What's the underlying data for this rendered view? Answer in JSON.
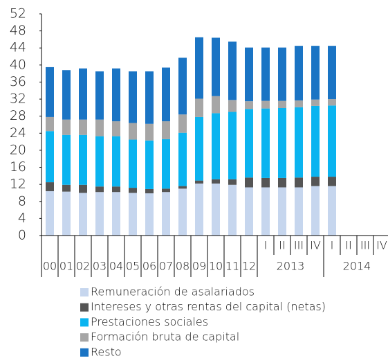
{
  "chart_data": {
    "type": "bar",
    "stacked": true,
    "categories": [
      "00",
      "01",
      "02",
      "03",
      "04",
      "05",
      "06",
      "07",
      "08",
      "09",
      "10",
      "11",
      "12",
      "I",
      "II",
      "III",
      "IV",
      "I",
      "II",
      "III",
      "IV"
    ],
    "x_groups": [
      {
        "label": "2013",
        "from": 13,
        "to": 16
      },
      {
        "label": "2014",
        "from": 17,
        "to": 20
      }
    ],
    "ylim": [
      0,
      52
    ],
    "yticks": [
      0,
      4,
      8,
      12,
      16,
      20,
      24,
      28,
      32,
      36,
      40,
      44,
      48,
      52
    ],
    "series": [
      {
        "name": "Remuneración de asalariados",
        "color": "#c6d6ee",
        "values": [
          10.4,
          10.3,
          10.0,
          10.2,
          10.2,
          10.0,
          9.9,
          10.2,
          11.0,
          12.2,
          12.2,
          11.9,
          11.3,
          11.3,
          11.3,
          11.3,
          11.6,
          11.6,
          null,
          null,
          null
        ]
      },
      {
        "name": "Intereses y otras rentas del capital (netas)",
        "color": "#555555",
        "values": [
          2.1,
          1.6,
          1.9,
          1.3,
          1.3,
          1.2,
          1.0,
          0.8,
          0.6,
          0.7,
          1.0,
          1.3,
          2.3,
          2.2,
          2.2,
          2.3,
          2.2,
          2.2,
          null,
          null,
          null
        ]
      },
      {
        "name": "Prestaciones sociales",
        "color": "#0ab4f0",
        "values": [
          12.0,
          11.7,
          11.7,
          11.8,
          11.8,
          11.3,
          11.4,
          11.6,
          12.5,
          14.9,
          15.5,
          15.8,
          16.1,
          16.3,
          16.4,
          16.5,
          16.6,
          16.7,
          null,
          null,
          null
        ]
      },
      {
        "name": "Formación bruta de capital",
        "color": "#a6a6a6",
        "values": [
          3.3,
          3.6,
          3.6,
          3.9,
          3.5,
          3.9,
          3.9,
          4.2,
          4.3,
          4.3,
          4.0,
          2.8,
          1.8,
          1.8,
          1.7,
          1.6,
          1.5,
          1.5,
          null,
          null,
          null
        ]
      },
      {
        "name": "Resto",
        "color": "#1a74c4",
        "values": [
          11.7,
          11.6,
          12.0,
          11.3,
          12.4,
          12.1,
          12.3,
          12.6,
          13.3,
          14.4,
          13.7,
          13.7,
          12.6,
          12.5,
          12.5,
          12.8,
          12.6,
          12.5,
          null,
          null,
          null
        ]
      }
    ]
  }
}
